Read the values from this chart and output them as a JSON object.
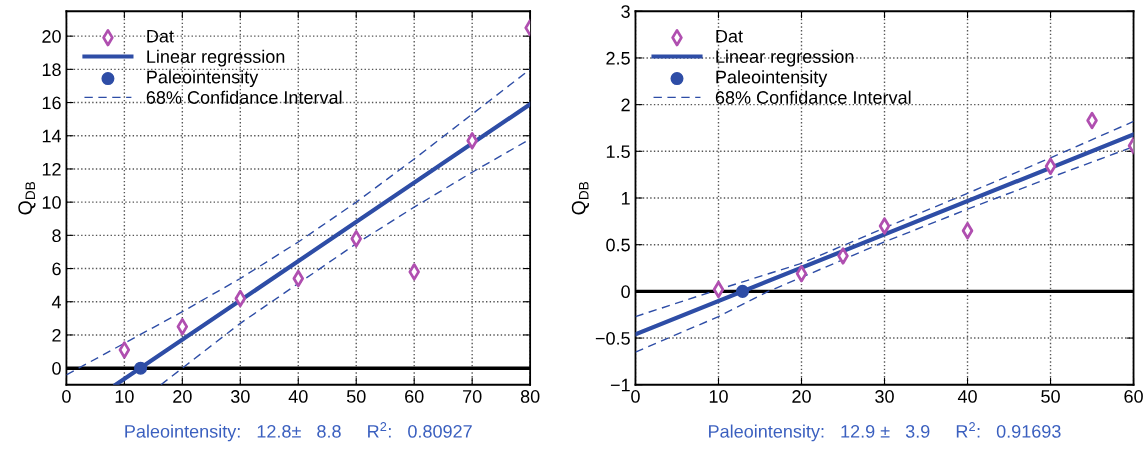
{
  "chart_data": [
    {
      "type": "scatter",
      "ylabel": "Q$_{DB}$",
      "xlim": [
        0,
        80
      ],
      "ylim": [
        -1,
        21.5
      ],
      "xticks": [
        0,
        10,
        20,
        30,
        40,
        50,
        60,
        70,
        80
      ],
      "yticks": [
        0,
        2,
        4,
        6,
        8,
        10,
        12,
        14,
        16,
        18,
        20
      ],
      "grid": true,
      "legend": "top left",
      "annotations": [
        "Paleointensity:   12.8±   8.8     R$^{2}$:   0.80927"
      ],
      "ref_lines": [
        {
          "axis": "y",
          "value": 0,
          "color": "#000000",
          "line_style": "solid"
        }
      ],
      "series": [
        {
          "name": "Dat",
          "marker": "diamond",
          "color": "#b04fb0",
          "x": [
            10,
            20,
            30,
            40,
            50,
            60,
            70,
            80
          ],
          "values": [
            1.1,
            2.5,
            4.2,
            5.4,
            7.8,
            5.8,
            13.7,
            20.5
          ]
        },
        {
          "name": "Linear regression",
          "type": "line",
          "line_style": "solid",
          "color": "#2e4da6",
          "x": [
            8.5,
            80
          ],
          "values": [
            -1,
            15.9
          ]
        },
        {
          "name": "Paleointensity",
          "type": "scatter",
          "marker": "circle",
          "color": "#2e4da6",
          "x": [
            12.8
          ],
          "values": [
            0
          ]
        },
        {
          "name": "68% Confidance Interval",
          "type": "line",
          "line_style": "dashed",
          "color": "#2e4da6",
          "x": [
            0,
            10,
            20,
            30,
            40,
            50,
            60,
            70,
            80
          ],
          "values": [
            -0.4,
            1.5,
            3.4,
            5.4,
            7.6,
            10.0,
            12.6,
            15.3,
            18.0
          ]
        },
        {
          "type": "line",
          "line_style": "dashed",
          "color": "#2e4da6",
          "x": [
            16.3,
            20,
            30,
            40,
            50,
            60,
            70,
            80
          ],
          "values": [
            -1,
            0,
            2.7,
            5.1,
            7.5,
            9.7,
            11.8,
            13.8
          ]
        }
      ]
    },
    {
      "type": "scatter",
      "ylabel": "Q$_{DB}$",
      "xlim": [
        0,
        60
      ],
      "ylim": [
        -1,
        3
      ],
      "xticks": [
        0,
        10,
        20,
        30,
        40,
        50,
        60
      ],
      "yticks": [
        {
          "value": -1,
          "label": "−1"
        },
        {
          "value": -0.5,
          "label": "−0.5"
        },
        0,
        0.5,
        1,
        1.5,
        2,
        2.5,
        3
      ],
      "grid": true,
      "legend": "top left",
      "annotations": [
        "Paleointensity:   12.9 ±   3.9     R$^{2}$:   0.91693"
      ],
      "ref_lines": [
        {
          "axis": "y",
          "value": 0,
          "color": "#000000",
          "line_style": "solid"
        }
      ],
      "series": [
        {
          "name": "Dat",
          "marker": "diamond",
          "color": "#b04fb0",
          "x": [
            10,
            20,
            25,
            30,
            40,
            50,
            55,
            60
          ],
          "values": [
            0.02,
            0.19,
            0.38,
            0.7,
            0.65,
            1.34,
            1.83,
            1.56
          ]
        },
        {
          "name": "Linear regression",
          "type": "line",
          "line_style": "solid",
          "color": "#2e4da6",
          "x": [
            0,
            60
          ],
          "values": [
            -0.46,
            1.68
          ]
        },
        {
          "name": "Paleointensity",
          "type": "scatter",
          "marker": "circle",
          "color": "#2e4da6",
          "x": [
            12.9
          ],
          "values": [
            0
          ]
        },
        {
          "name": "68% Confidance Interval",
          "type": "line",
          "line_style": "dashed",
          "color": "#2e4da6",
          "x": [
            0,
            10,
            20,
            30,
            40,
            50,
            60
          ],
          "values": [
            -0.27,
            0.02,
            0.3,
            0.68,
            1.05,
            1.43,
            1.82
          ]
        },
        {
          "type": "line",
          "line_style": "dashed",
          "color": "#2e4da6",
          "x": [
            0,
            10,
            16,
            20,
            30,
            40,
            50,
            60
          ],
          "values": [
            -0.65,
            -0.27,
            0,
            0.15,
            0.53,
            0.88,
            1.22,
            1.55
          ]
        }
      ]
    }
  ]
}
